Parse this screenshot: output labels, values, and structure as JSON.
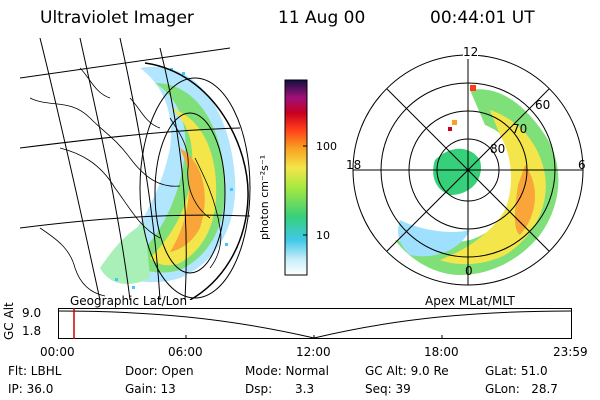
{
  "header": {
    "instrument": "Ultraviolet Imager",
    "date": "11 Aug 00",
    "time": "00:44:01 UT"
  },
  "left_panel": {
    "label": "Geographic Lat/Lon"
  },
  "right_panel": {
    "label": "Apex MLat/MLT",
    "mlt_labels": [
      "12",
      "18",
      "6",
      "0"
    ],
    "lat_labels": [
      "60",
      "70",
      "80"
    ]
  },
  "colorbar": {
    "unit_label": "photon cm⁻²s⁻¹",
    "ticks": [
      "100",
      "10"
    ],
    "scale": "log"
  },
  "timeline": {
    "ylabel": "GC Alt",
    "yticks": [
      "9.0",
      "1.8"
    ],
    "xticks": [
      "00:00",
      "06:00",
      "12:00",
      "18:00",
      "23:59"
    ],
    "marker_time": "00:44",
    "marker_color": "#d00000"
  },
  "status": {
    "flt": "Flt: LBHL",
    "door": "Door: Open",
    "mode": "Mode: Normal",
    "gcalt": "GC Alt: 9.0 Re",
    "glat": "GLat:  51.0",
    "ip": "IP: 36.0",
    "gain": "Gain: 13",
    "dsp": "Dsp:      3.3",
    "seq": "Seq: 39",
    "glon": "GLon:   28.7"
  }
}
